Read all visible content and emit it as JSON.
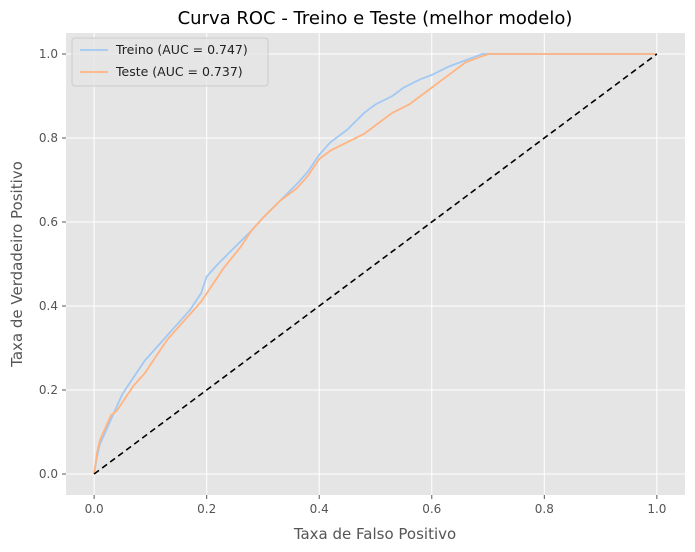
{
  "chart_data": {
    "type": "line",
    "title": "Curva ROC - Treino e Teste (melhor modelo)",
    "xlabel": "Taxa de Falso Positivo",
    "ylabel": "Taxa de Verdadeiro Positivo",
    "xlim": [
      -0.05,
      1.05
    ],
    "ylim": [
      -0.05,
      1.05
    ],
    "xticks": [
      "0.0",
      "0.2",
      "0.4",
      "0.6",
      "0.8",
      "1.0"
    ],
    "yticks": [
      "0.0",
      "0.2",
      "0.4",
      "0.6",
      "0.8",
      "1.0"
    ],
    "grid": true,
    "legend_position": "top-left",
    "background": "#e5e5e5",
    "grid_color": "#ffffff",
    "series": [
      {
        "name": "Treino (AUC = 0.747)",
        "color": "#a1c9f4",
        "x": [
          0.0,
          0.005,
          0.01,
          0.02,
          0.03,
          0.04,
          0.05,
          0.07,
          0.09,
          0.11,
          0.13,
          0.15,
          0.17,
          0.19,
          0.2,
          0.22,
          0.25,
          0.28,
          0.3,
          0.33,
          0.36,
          0.38,
          0.4,
          0.42,
          0.45,
          0.48,
          0.5,
          0.53,
          0.55,
          0.58,
          0.6,
          0.63,
          0.65,
          0.67,
          0.69,
          0.7,
          0.72,
          1.0
        ],
        "y": [
          0.0,
          0.04,
          0.07,
          0.1,
          0.13,
          0.16,
          0.19,
          0.23,
          0.27,
          0.3,
          0.33,
          0.36,
          0.39,
          0.43,
          0.47,
          0.5,
          0.54,
          0.58,
          0.61,
          0.65,
          0.69,
          0.72,
          0.76,
          0.79,
          0.82,
          0.86,
          0.88,
          0.9,
          0.92,
          0.94,
          0.95,
          0.97,
          0.98,
          0.99,
          1.0,
          1.0,
          1.0,
          1.0
        ]
      },
      {
        "name": "Teste (AUC = 0.737)",
        "color": "#ffb482",
        "x": [
          0.0,
          0.005,
          0.01,
          0.02,
          0.03,
          0.04,
          0.05,
          0.07,
          0.09,
          0.11,
          0.13,
          0.15,
          0.17,
          0.19,
          0.21,
          0.23,
          0.26,
          0.28,
          0.3,
          0.33,
          0.36,
          0.38,
          0.4,
          0.42,
          0.45,
          0.48,
          0.5,
          0.53,
          0.56,
          0.58,
          0.6,
          0.62,
          0.64,
          0.66,
          0.68,
          0.7,
          0.72,
          1.0
        ],
        "y": [
          0.0,
          0.05,
          0.08,
          0.11,
          0.14,
          0.15,
          0.17,
          0.21,
          0.24,
          0.28,
          0.32,
          0.35,
          0.38,
          0.41,
          0.45,
          0.49,
          0.54,
          0.58,
          0.61,
          0.65,
          0.68,
          0.71,
          0.75,
          0.77,
          0.79,
          0.81,
          0.83,
          0.86,
          0.88,
          0.9,
          0.92,
          0.94,
          0.96,
          0.98,
          0.99,
          1.0,
          1.0,
          1.0
        ]
      },
      {
        "name": "",
        "color": "#000000",
        "dashed": true,
        "x": [
          0.0,
          1.0
        ],
        "y": [
          0.0,
          1.0
        ]
      }
    ]
  }
}
